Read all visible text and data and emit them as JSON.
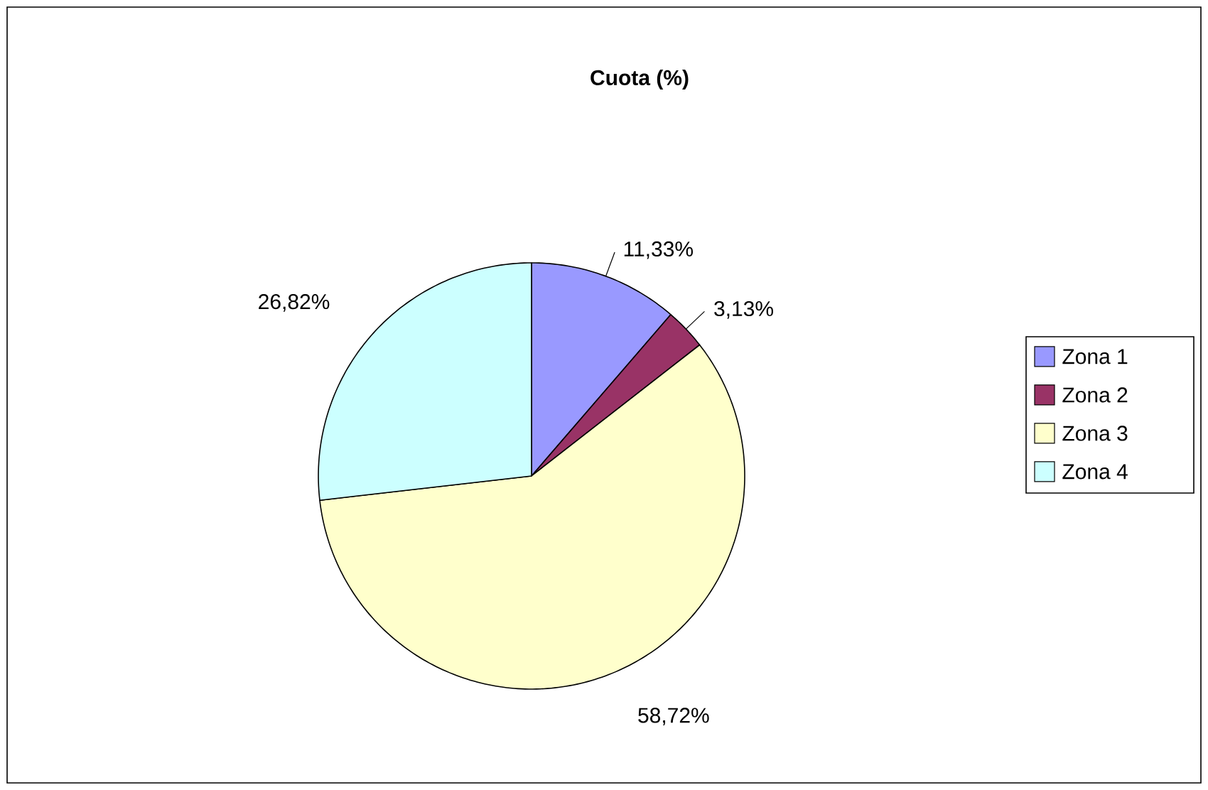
{
  "chart_data": {
    "type": "pie",
    "title": "Cuota (%)",
    "categories": [
      "Zona 1",
      "Zona 2",
      "Zona 3",
      "Zona 4"
    ],
    "values": [
      11.33,
      3.13,
      58.72,
      26.82
    ],
    "value_labels": [
      "11,33%",
      "3,13%",
      "58,72%",
      "26,82%"
    ],
    "colors": [
      "#9999ff",
      "#993366",
      "#ffffcc",
      "#ccffff"
    ],
    "legend": "right"
  }
}
